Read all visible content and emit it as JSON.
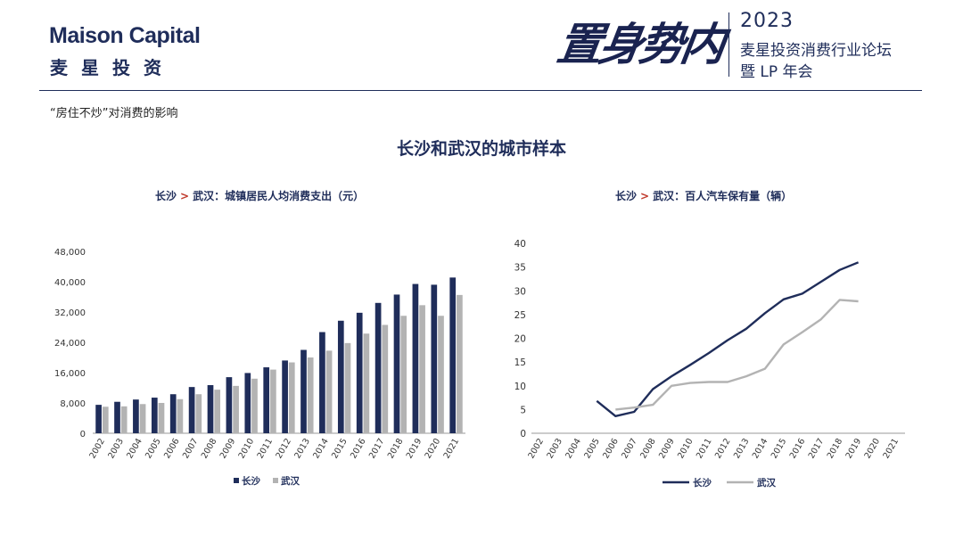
{
  "header": {
    "logo_en": "Maison Capital",
    "logo_cn": "麦星投资",
    "slogan": "置身势内",
    "event_year": "2023",
    "event_line1": "麦星投资消费行业论坛",
    "event_line2": "暨 LP 年会"
  },
  "page": {
    "subtitle": "“房住不炒”对消费的影响",
    "title": "长沙和武汉的城市样本"
  },
  "colors": {
    "changsha": "#1f2d5a",
    "wuhan": "#b3b3b3",
    "accent": "#c0392b"
  },
  "chart_data": [
    {
      "type": "bar",
      "title_parts": [
        "长沙",
        ">",
        "武汉：城镇居民人均消费支出（元）"
      ],
      "categories": [
        "2002",
        "2003",
        "2004",
        "2005",
        "2006",
        "2007",
        "2008",
        "2009",
        "2010",
        "2011",
        "2012",
        "2013",
        "2014",
        "2015",
        "2016",
        "2017",
        "2018",
        "2019",
        "2020",
        "2021"
      ],
      "series": [
        {
          "name": "长沙",
          "values": [
            7500,
            8300,
            8900,
            9400,
            10300,
            12200,
            12700,
            14800,
            15900,
            17400,
            19200,
            22000,
            26700,
            29700,
            31800,
            34400,
            36600,
            39400,
            39200,
            41100
          ]
        },
        {
          "name": "武汉",
          "values": [
            7000,
            7100,
            7700,
            8000,
            9000,
            10300,
            11500,
            12500,
            14400,
            16800,
            18700,
            20000,
            21800,
            23800,
            26300,
            28600,
            31000,
            33800,
            31000,
            36500
          ]
        }
      ],
      "yticks": [
        "0",
        "8,000",
        "16,000",
        "24,000",
        "32,000",
        "40,000",
        "48,000"
      ],
      "ylim": [
        0,
        48000
      ],
      "legend_placement": "bottom",
      "grid": false
    },
    {
      "type": "line",
      "title_parts": [
        "长沙",
        ">",
        "武汉：百人汽车保有量（辆）"
      ],
      "categories": [
        "2002",
        "2003",
        "2004",
        "2005",
        "2006",
        "2007",
        "2008",
        "2009",
        "2010",
        "2011",
        "2012",
        "2013",
        "2014",
        "2015",
        "2016",
        "2017",
        "2018",
        "2019",
        "2020",
        "2021"
      ],
      "series": [
        {
          "name": "长沙",
          "values": [
            null,
            null,
            null,
            6.8,
            3.6,
            4.5,
            9.3,
            12.0,
            14.4,
            16.9,
            19.6,
            22.0,
            25.3,
            28.2,
            29.4,
            31.9,
            34.4,
            36.0,
            null,
            null
          ]
        },
        {
          "name": "武汉",
          "values": [
            null,
            null,
            null,
            null,
            5.0,
            5.4,
            6.0,
            10.0,
            10.6,
            10.8,
            10.8,
            12.0,
            13.6,
            18.7,
            21.3,
            24.0,
            28.1,
            27.8,
            null,
            null
          ]
        }
      ],
      "yticks": [
        "0",
        "5",
        "10",
        "15",
        "20",
        "25",
        "30",
        "35",
        "40"
      ],
      "ylim": [
        0,
        40
      ],
      "legend_placement": "bottom",
      "grid": false
    }
  ]
}
